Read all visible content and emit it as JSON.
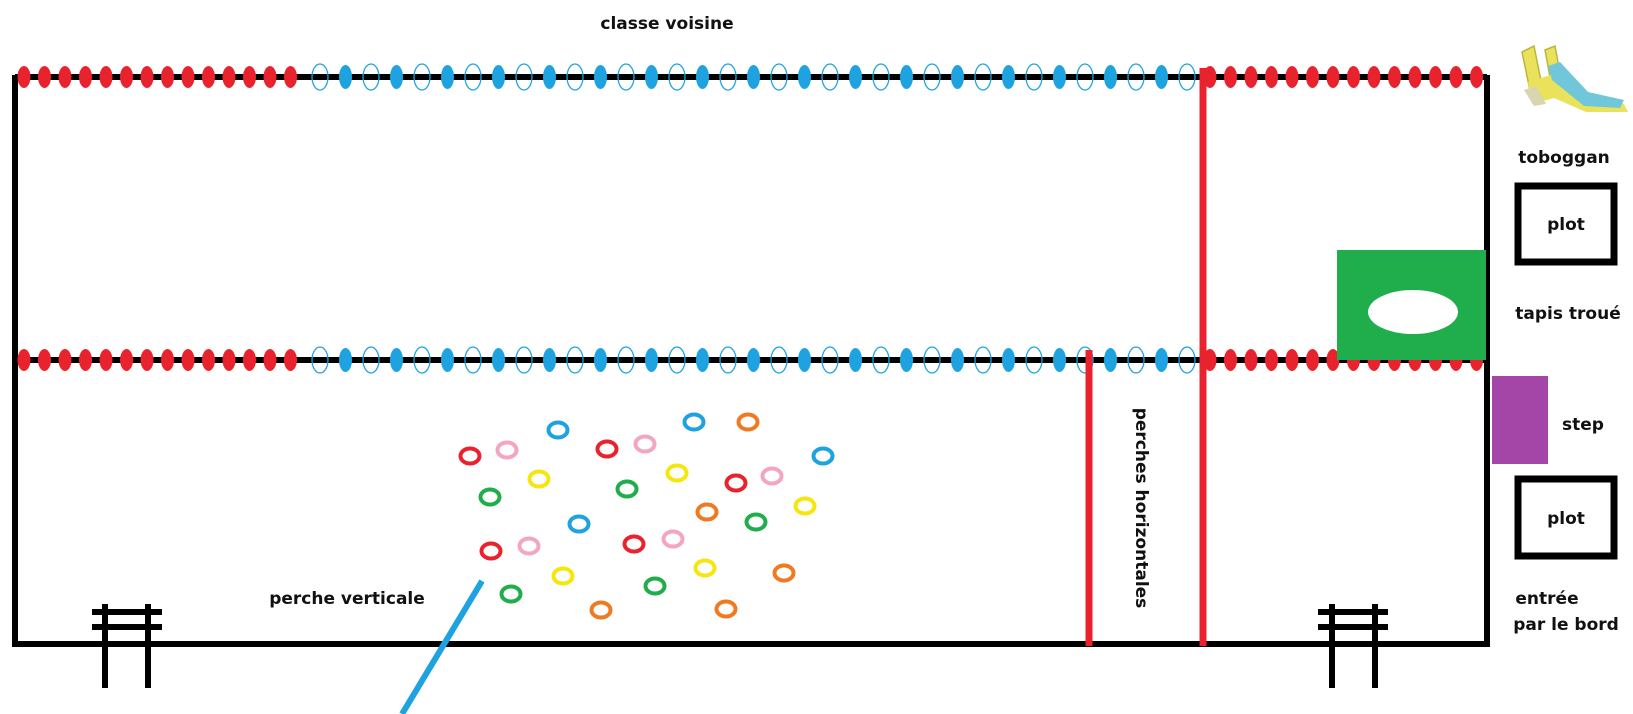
{
  "labels": {
    "classe_voisine": "classe voisine",
    "toboggan": "toboggan",
    "plot_top": "plot",
    "tapis_troue": "tapis troué",
    "step": "step",
    "plot_bottom": "plot",
    "entree_line1": "entrée",
    "entree_line2": "par le bord",
    "perche_verticale": "perche verticale",
    "perches_horizontales": "perches horizontales"
  },
  "colors": {
    "frame": "#000000",
    "red_bead": "#e8232e",
    "blue_bead": "#1ea3e0",
    "pole": "#e8232e",
    "vertical_pole": "#1ea3e0",
    "green_mat": "#1fae4b",
    "step": "#a346a8",
    "slide_yellow": "#e9e25a",
    "slide_blue": "#6fc7d9"
  },
  "rings": [
    {
      "color": "#1ea3e0"
    },
    {
      "color": "#1ea3e0"
    },
    {
      "color": "#f07a22"
    },
    {
      "color": "#e8232e"
    },
    {
      "color": "#f4a6c0"
    },
    {
      "color": "#e8232e"
    },
    {
      "color": "#f4a6c0"
    },
    {
      "color": "#1ea3e0"
    },
    {
      "color": "#f5e60e"
    },
    {
      "color": "#f5e60e"
    },
    {
      "color": "#e8232e"
    },
    {
      "color": "#f4a6c0"
    },
    {
      "color": "#1fae4b"
    },
    {
      "color": "#1fae4b"
    },
    {
      "color": "#f5e60e"
    },
    {
      "color": "#f07a22"
    },
    {
      "color": "#1ea3e0"
    },
    {
      "color": "#1fae4b"
    },
    {
      "color": "#e8232e"
    },
    {
      "color": "#f4a6c0"
    },
    {
      "color": "#e8232e"
    },
    {
      "color": "#f4a6c0"
    },
    {
      "color": "#f5e60e"
    },
    {
      "color": "#f5e60e"
    },
    {
      "color": "#f07a22"
    },
    {
      "color": "#1fae4b"
    },
    {
      "color": "#1fae4b"
    },
    {
      "color": "#f07a22"
    },
    {
      "color": "#f07a22"
    }
  ]
}
